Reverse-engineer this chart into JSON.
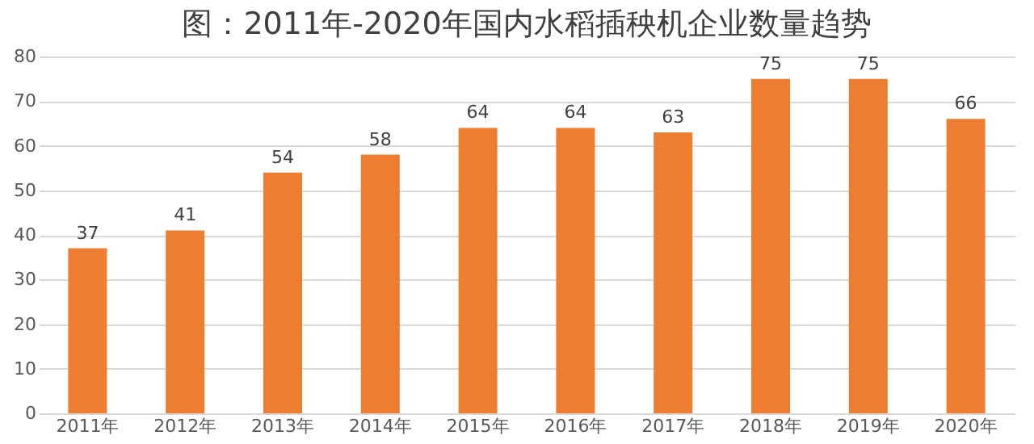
{
  "chart_data": {
    "type": "bar",
    "title": "图：2011年-2020年国内水稻插秧机企业数量趋势",
    "categories": [
      "2011年",
      "2012年",
      "2013年",
      "2014年",
      "2015年",
      "2016年",
      "2017年",
      "2018年",
      "2019年",
      "2020年"
    ],
    "values": [
      37,
      41,
      54,
      58,
      64,
      64,
      63,
      75,
      75,
      66
    ],
    "color": "#ed7d31",
    "ylim": [
      0,
      80
    ],
    "yticks": [
      0,
      10,
      20,
      30,
      40,
      50,
      60,
      70,
      80
    ],
    "grid": "y",
    "data_labels": true
  }
}
